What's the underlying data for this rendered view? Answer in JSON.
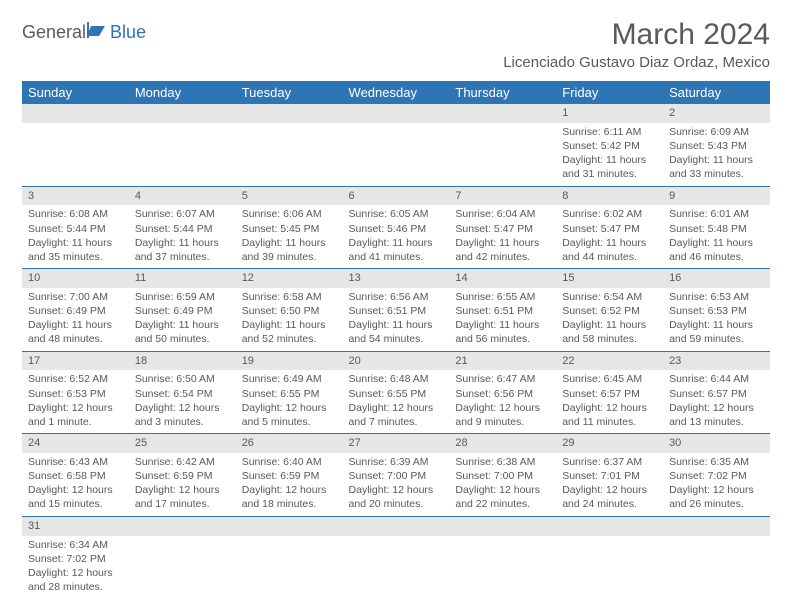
{
  "logo": {
    "part1": "General",
    "part2": "Blue"
  },
  "title": "March 2024",
  "location": "Licenciado Gustavo Diaz Ordaz, Mexico",
  "colors": {
    "header_blue": "#2E75B6",
    "daynum_bg": "#e7e6e6",
    "text_gray": "#595959",
    "white": "#ffffff"
  },
  "weekdays": [
    "Sunday",
    "Monday",
    "Tuesday",
    "Wednesday",
    "Thursday",
    "Friday",
    "Saturday"
  ],
  "weeks": [
    [
      null,
      null,
      null,
      null,
      null,
      {
        "d": "1",
        "sr": "Sunrise: 6:11 AM",
        "ss": "Sunset: 5:42 PM",
        "dl": "Daylight: 11 hours and 31 minutes."
      },
      {
        "d": "2",
        "sr": "Sunrise: 6:09 AM",
        "ss": "Sunset: 5:43 PM",
        "dl": "Daylight: 11 hours and 33 minutes."
      }
    ],
    [
      {
        "d": "3",
        "sr": "Sunrise: 6:08 AM",
        "ss": "Sunset: 5:44 PM",
        "dl": "Daylight: 11 hours and 35 minutes."
      },
      {
        "d": "4",
        "sr": "Sunrise: 6:07 AM",
        "ss": "Sunset: 5:44 PM",
        "dl": "Daylight: 11 hours and 37 minutes."
      },
      {
        "d": "5",
        "sr": "Sunrise: 6:06 AM",
        "ss": "Sunset: 5:45 PM",
        "dl": "Daylight: 11 hours and 39 minutes."
      },
      {
        "d": "6",
        "sr": "Sunrise: 6:05 AM",
        "ss": "Sunset: 5:46 PM",
        "dl": "Daylight: 11 hours and 41 minutes."
      },
      {
        "d": "7",
        "sr": "Sunrise: 6:04 AM",
        "ss": "Sunset: 5:47 PM",
        "dl": "Daylight: 11 hours and 42 minutes."
      },
      {
        "d": "8",
        "sr": "Sunrise: 6:02 AM",
        "ss": "Sunset: 5:47 PM",
        "dl": "Daylight: 11 hours and 44 minutes."
      },
      {
        "d": "9",
        "sr": "Sunrise: 6:01 AM",
        "ss": "Sunset: 5:48 PM",
        "dl": "Daylight: 11 hours and 46 minutes."
      }
    ],
    [
      {
        "d": "10",
        "sr": "Sunrise: 7:00 AM",
        "ss": "Sunset: 6:49 PM",
        "dl": "Daylight: 11 hours and 48 minutes."
      },
      {
        "d": "11",
        "sr": "Sunrise: 6:59 AM",
        "ss": "Sunset: 6:49 PM",
        "dl": "Daylight: 11 hours and 50 minutes."
      },
      {
        "d": "12",
        "sr": "Sunrise: 6:58 AM",
        "ss": "Sunset: 6:50 PM",
        "dl": "Daylight: 11 hours and 52 minutes."
      },
      {
        "d": "13",
        "sr": "Sunrise: 6:56 AM",
        "ss": "Sunset: 6:51 PM",
        "dl": "Daylight: 11 hours and 54 minutes."
      },
      {
        "d": "14",
        "sr": "Sunrise: 6:55 AM",
        "ss": "Sunset: 6:51 PM",
        "dl": "Daylight: 11 hours and 56 minutes."
      },
      {
        "d": "15",
        "sr": "Sunrise: 6:54 AM",
        "ss": "Sunset: 6:52 PM",
        "dl": "Daylight: 11 hours and 58 minutes."
      },
      {
        "d": "16",
        "sr": "Sunrise: 6:53 AM",
        "ss": "Sunset: 6:53 PM",
        "dl": "Daylight: 11 hours and 59 minutes."
      }
    ],
    [
      {
        "d": "17",
        "sr": "Sunrise: 6:52 AM",
        "ss": "Sunset: 6:53 PM",
        "dl": "Daylight: 12 hours and 1 minute."
      },
      {
        "d": "18",
        "sr": "Sunrise: 6:50 AM",
        "ss": "Sunset: 6:54 PM",
        "dl": "Daylight: 12 hours and 3 minutes."
      },
      {
        "d": "19",
        "sr": "Sunrise: 6:49 AM",
        "ss": "Sunset: 6:55 PM",
        "dl": "Daylight: 12 hours and 5 minutes."
      },
      {
        "d": "20",
        "sr": "Sunrise: 6:48 AM",
        "ss": "Sunset: 6:55 PM",
        "dl": "Daylight: 12 hours and 7 minutes."
      },
      {
        "d": "21",
        "sr": "Sunrise: 6:47 AM",
        "ss": "Sunset: 6:56 PM",
        "dl": "Daylight: 12 hours and 9 minutes."
      },
      {
        "d": "22",
        "sr": "Sunrise: 6:45 AM",
        "ss": "Sunset: 6:57 PM",
        "dl": "Daylight: 12 hours and 11 minutes."
      },
      {
        "d": "23",
        "sr": "Sunrise: 6:44 AM",
        "ss": "Sunset: 6:57 PM",
        "dl": "Daylight: 12 hours and 13 minutes."
      }
    ],
    [
      {
        "d": "24",
        "sr": "Sunrise: 6:43 AM",
        "ss": "Sunset: 6:58 PM",
        "dl": "Daylight: 12 hours and 15 minutes."
      },
      {
        "d": "25",
        "sr": "Sunrise: 6:42 AM",
        "ss": "Sunset: 6:59 PM",
        "dl": "Daylight: 12 hours and 17 minutes."
      },
      {
        "d": "26",
        "sr": "Sunrise: 6:40 AM",
        "ss": "Sunset: 6:59 PM",
        "dl": "Daylight: 12 hours and 18 minutes."
      },
      {
        "d": "27",
        "sr": "Sunrise: 6:39 AM",
        "ss": "Sunset: 7:00 PM",
        "dl": "Daylight: 12 hours and 20 minutes."
      },
      {
        "d": "28",
        "sr": "Sunrise: 6:38 AM",
        "ss": "Sunset: 7:00 PM",
        "dl": "Daylight: 12 hours and 22 minutes."
      },
      {
        "d": "29",
        "sr": "Sunrise: 6:37 AM",
        "ss": "Sunset: 7:01 PM",
        "dl": "Daylight: 12 hours and 24 minutes."
      },
      {
        "d": "30",
        "sr": "Sunrise: 6:35 AM",
        "ss": "Sunset: 7:02 PM",
        "dl": "Daylight: 12 hours and 26 minutes."
      }
    ],
    [
      {
        "d": "31",
        "sr": "Sunrise: 6:34 AM",
        "ss": "Sunset: 7:02 PM",
        "dl": "Daylight: 12 hours and 28 minutes."
      },
      null,
      null,
      null,
      null,
      null,
      null
    ]
  ]
}
